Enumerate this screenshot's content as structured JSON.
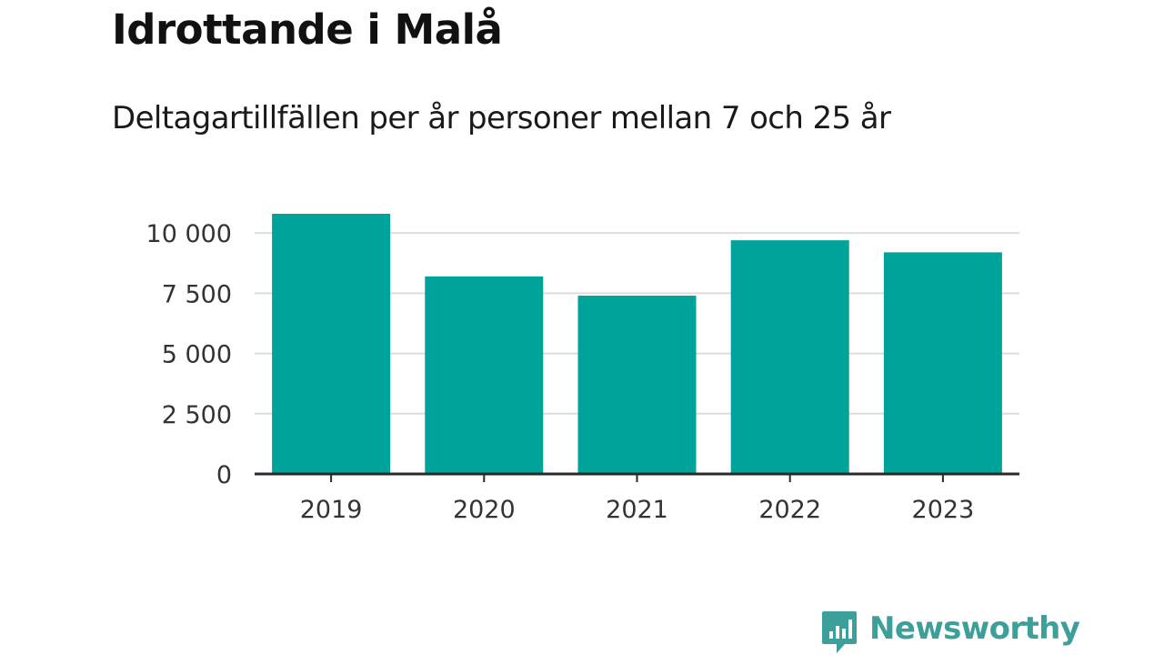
{
  "title": "Idrottande i Malå",
  "subtitle": "Deltagartillfällen per år personer mellan 7 och 25 år",
  "brand": {
    "name": "Newsworthy",
    "logo_icon": "chart-speech-bubble-icon"
  },
  "colors": {
    "bar": "#00a39a",
    "brand": "#3d9f99",
    "grid": "#dddddd",
    "axis": "#2a2a2a",
    "tick_text": "#333333"
  },
  "chart_data": {
    "type": "bar",
    "title": "Idrottande i Malå",
    "subtitle": "Deltagartillfällen per år personer mellan 7 och 25 år",
    "categories": [
      "2019",
      "2020",
      "2021",
      "2022",
      "2023"
    ],
    "values": [
      10800,
      8200,
      7400,
      9700,
      9200
    ],
    "xlabel": "",
    "ylabel": "",
    "ylim": [
      0,
      10800
    ],
    "yticks": [
      0,
      2500,
      5000,
      7500,
      10000
    ],
    "ytick_labels": [
      "0",
      "2 500",
      "5 000",
      "7 500",
      "10 000"
    ],
    "grid": true,
    "legend": "none"
  }
}
